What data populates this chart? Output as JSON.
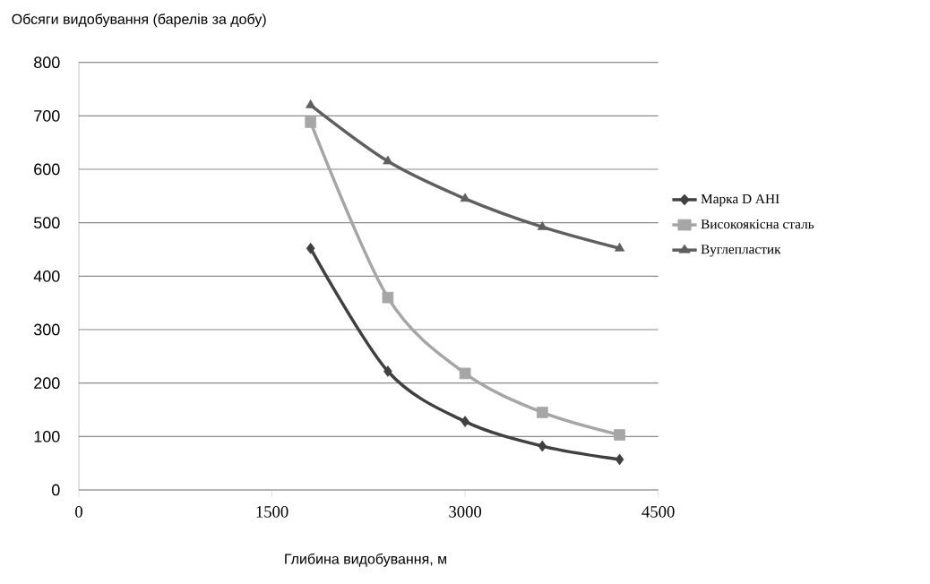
{
  "chart_data": {
    "type": "line",
    "ylabel": "Обсяги видобування (барелів за добу)",
    "xlabel": "Глибина видобування,  м",
    "x": [
      1800,
      2400,
      3000,
      3600,
      4200
    ],
    "series": [
      {
        "name": "Марка D АНІ",
        "color": "#404040",
        "marker": "diamond",
        "values": [
          452,
          222,
          128,
          82,
          57
        ]
      },
      {
        "name": "Високоякісна сталь",
        "color": "#a6a6a6",
        "marker": "square",
        "values": [
          688,
          360,
          218,
          145,
          103
        ]
      },
      {
        "name": "Вуглепластик",
        "color": "#5f5f5f",
        "marker": "triangle",
        "values": [
          720,
          615,
          545,
          492,
          452
        ]
      }
    ],
    "xlim": [
      0,
      4500
    ],
    "xticks": [
      0,
      1500,
      3000,
      4500
    ],
    "ylim": [
      0,
      800
    ],
    "yticks": [
      0,
      100,
      200,
      300,
      400,
      500,
      600,
      700,
      800
    ],
    "grid": "y",
    "legend": "right"
  }
}
